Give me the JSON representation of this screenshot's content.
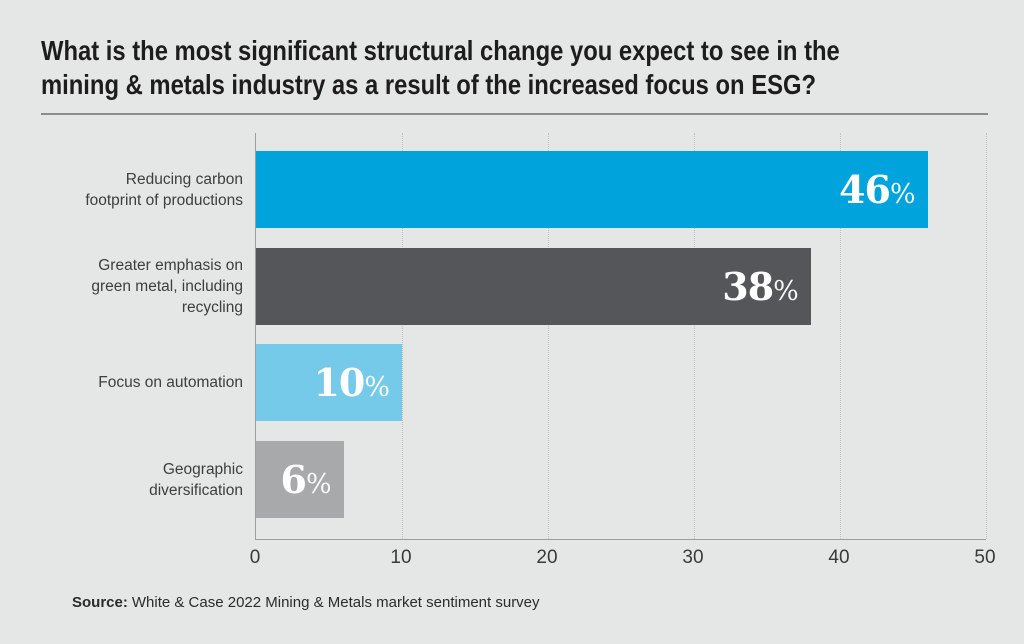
{
  "header": {
    "title_line1": "What is the most significant structural change you expect to see in the",
    "title_line2": "mining & metals industry as a result of the increased focus on ESG?"
  },
  "chart_data": {
    "type": "bar",
    "orientation": "horizontal",
    "title": "What is the most significant structural change you expect to see in the mining & metals industry as a result of the increased focus on ESG?",
    "categories": [
      "Reducing carbon footprint of productions",
      "Greater emphasis on green metal, including recycling",
      "Focus on automation",
      "Geographic diversification"
    ],
    "category_lines": [
      [
        "Reducing carbon",
        "footprint of productions"
      ],
      [
        "Greater emphasis on",
        "green metal, including",
        "recycling"
      ],
      [
        "Focus on automation"
      ],
      [
        "Geographic",
        "diversification"
      ]
    ],
    "values": [
      46,
      38,
      10,
      6
    ],
    "unit": "%",
    "value_labels": [
      "46%",
      "38%",
      "10%",
      "6%"
    ],
    "bar_colors": [
      "#00a3dc",
      "#55565a",
      "#76cae9",
      "#a8a9ab"
    ],
    "xlabel": "",
    "ylabel": "",
    "xlim": [
      0,
      50
    ],
    "xticks": [
      0,
      10,
      20,
      30,
      40,
      50
    ],
    "grid": "vertical-dotted",
    "legend": "none"
  },
  "source": {
    "label": "Source:",
    "text": "White & Case 2022 Mining & Metals market sentiment survey"
  },
  "colors": {
    "background": "#e5e6e6",
    "title_text": "#1d1d1d",
    "divider": "#8c8c8c",
    "axis": "#9c9d9d",
    "grid": "#bfc0c0",
    "category_text": "#3d3e3e",
    "tick_text": "#3a3a3a",
    "value_text": "#ffffff",
    "accent_blue": "#00a3dc",
    "dark_gray": "#55565a",
    "light_blue": "#76cae9",
    "mid_gray": "#a8a9ab"
  }
}
